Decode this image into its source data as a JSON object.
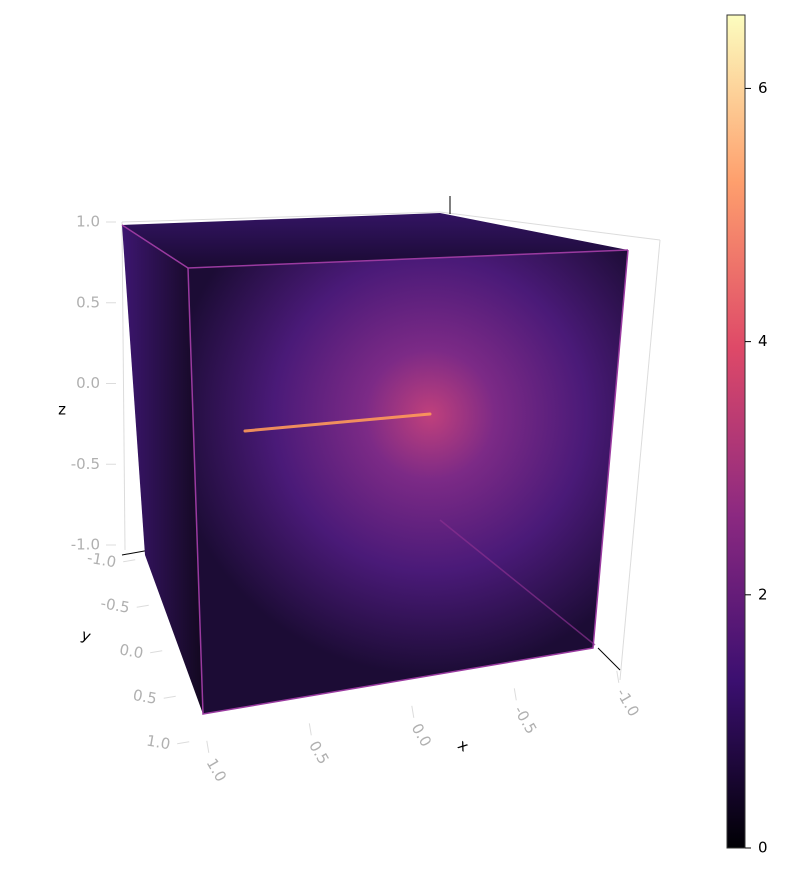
{
  "chart_data": {
    "type": "volume",
    "x_label": "x",
    "y_label": "y",
    "z_label": "z",
    "xlim": [
      -1,
      1
    ],
    "ylim": [
      -1,
      1
    ],
    "zlim": [
      -1,
      1
    ],
    "xticks": [
      {
        "value": 1,
        "label": "1.0"
      },
      {
        "value": 0.5,
        "label": "0.5"
      },
      {
        "value": 0,
        "label": "0.0"
      },
      {
        "value": -0.5,
        "label": "-0.5"
      },
      {
        "value": -1,
        "label": "-1.0"
      }
    ],
    "yticks": [
      {
        "value": -1,
        "label": "-1.0"
      },
      {
        "value": -0.5,
        "label": "-0.5"
      },
      {
        "value": 0,
        "label": "0.0"
      },
      {
        "value": 0.5,
        "label": "0.5"
      },
      {
        "value": 1,
        "label": "1.0"
      }
    ],
    "zticks": [
      {
        "value": 1,
        "label": "1.0"
      },
      {
        "value": 0.5,
        "label": "0.5"
      },
      {
        "value": 0,
        "label": "0.0"
      },
      {
        "value": -0.5,
        "label": "-0.5"
      },
      {
        "value": -1,
        "label": "-1.0"
      }
    ],
    "colorbar": {
      "lim": [
        0,
        6.58
      ],
      "ticks": [
        0,
        2,
        4,
        6
      ],
      "colormap": "magma"
    }
  }
}
